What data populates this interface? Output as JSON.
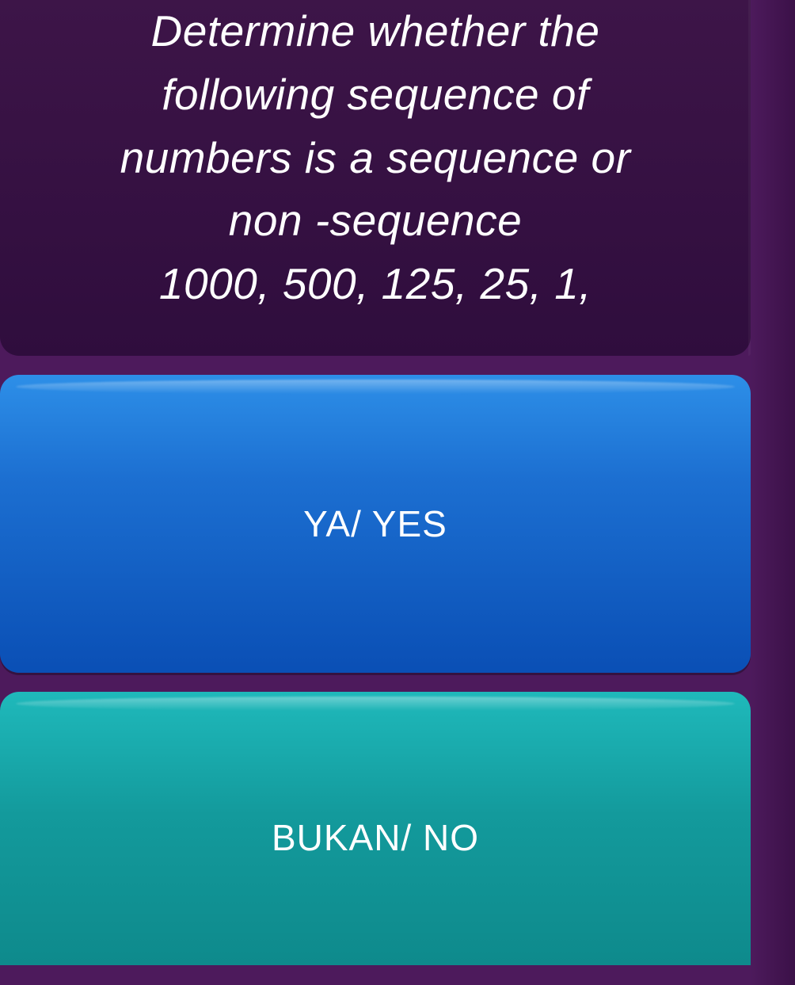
{
  "question": {
    "prompt_line1": "Determine whether the",
    "prompt_line2": "following sequence of",
    "prompt_line3": "numbers is a sequence or",
    "prompt_line4": "non -sequence",
    "sequence": "1000, 500, 125, 25, 1,"
  },
  "answers": {
    "yes_label": "YA/ YES",
    "no_label": "BUKAN/ NO"
  },
  "styles": {
    "background_color": "#4d1a5c",
    "question_panel_bg_top": "#3d1548",
    "question_panel_bg_bottom": "#2f0d3d",
    "text_color": "#ffffff",
    "question_fontsize": 55,
    "answer_fontsize": 46,
    "yes_button": {
      "gradient_top": "#2d8fe8",
      "gradient_mid": "#1c6fd1",
      "gradient_bottom": "#0a4fb5"
    },
    "no_button": {
      "gradient_top": "#1fb9bb",
      "gradient_mid": "#139a9c",
      "gradient_bottom": "#0e8a8c"
    },
    "border_radius": 24
  }
}
